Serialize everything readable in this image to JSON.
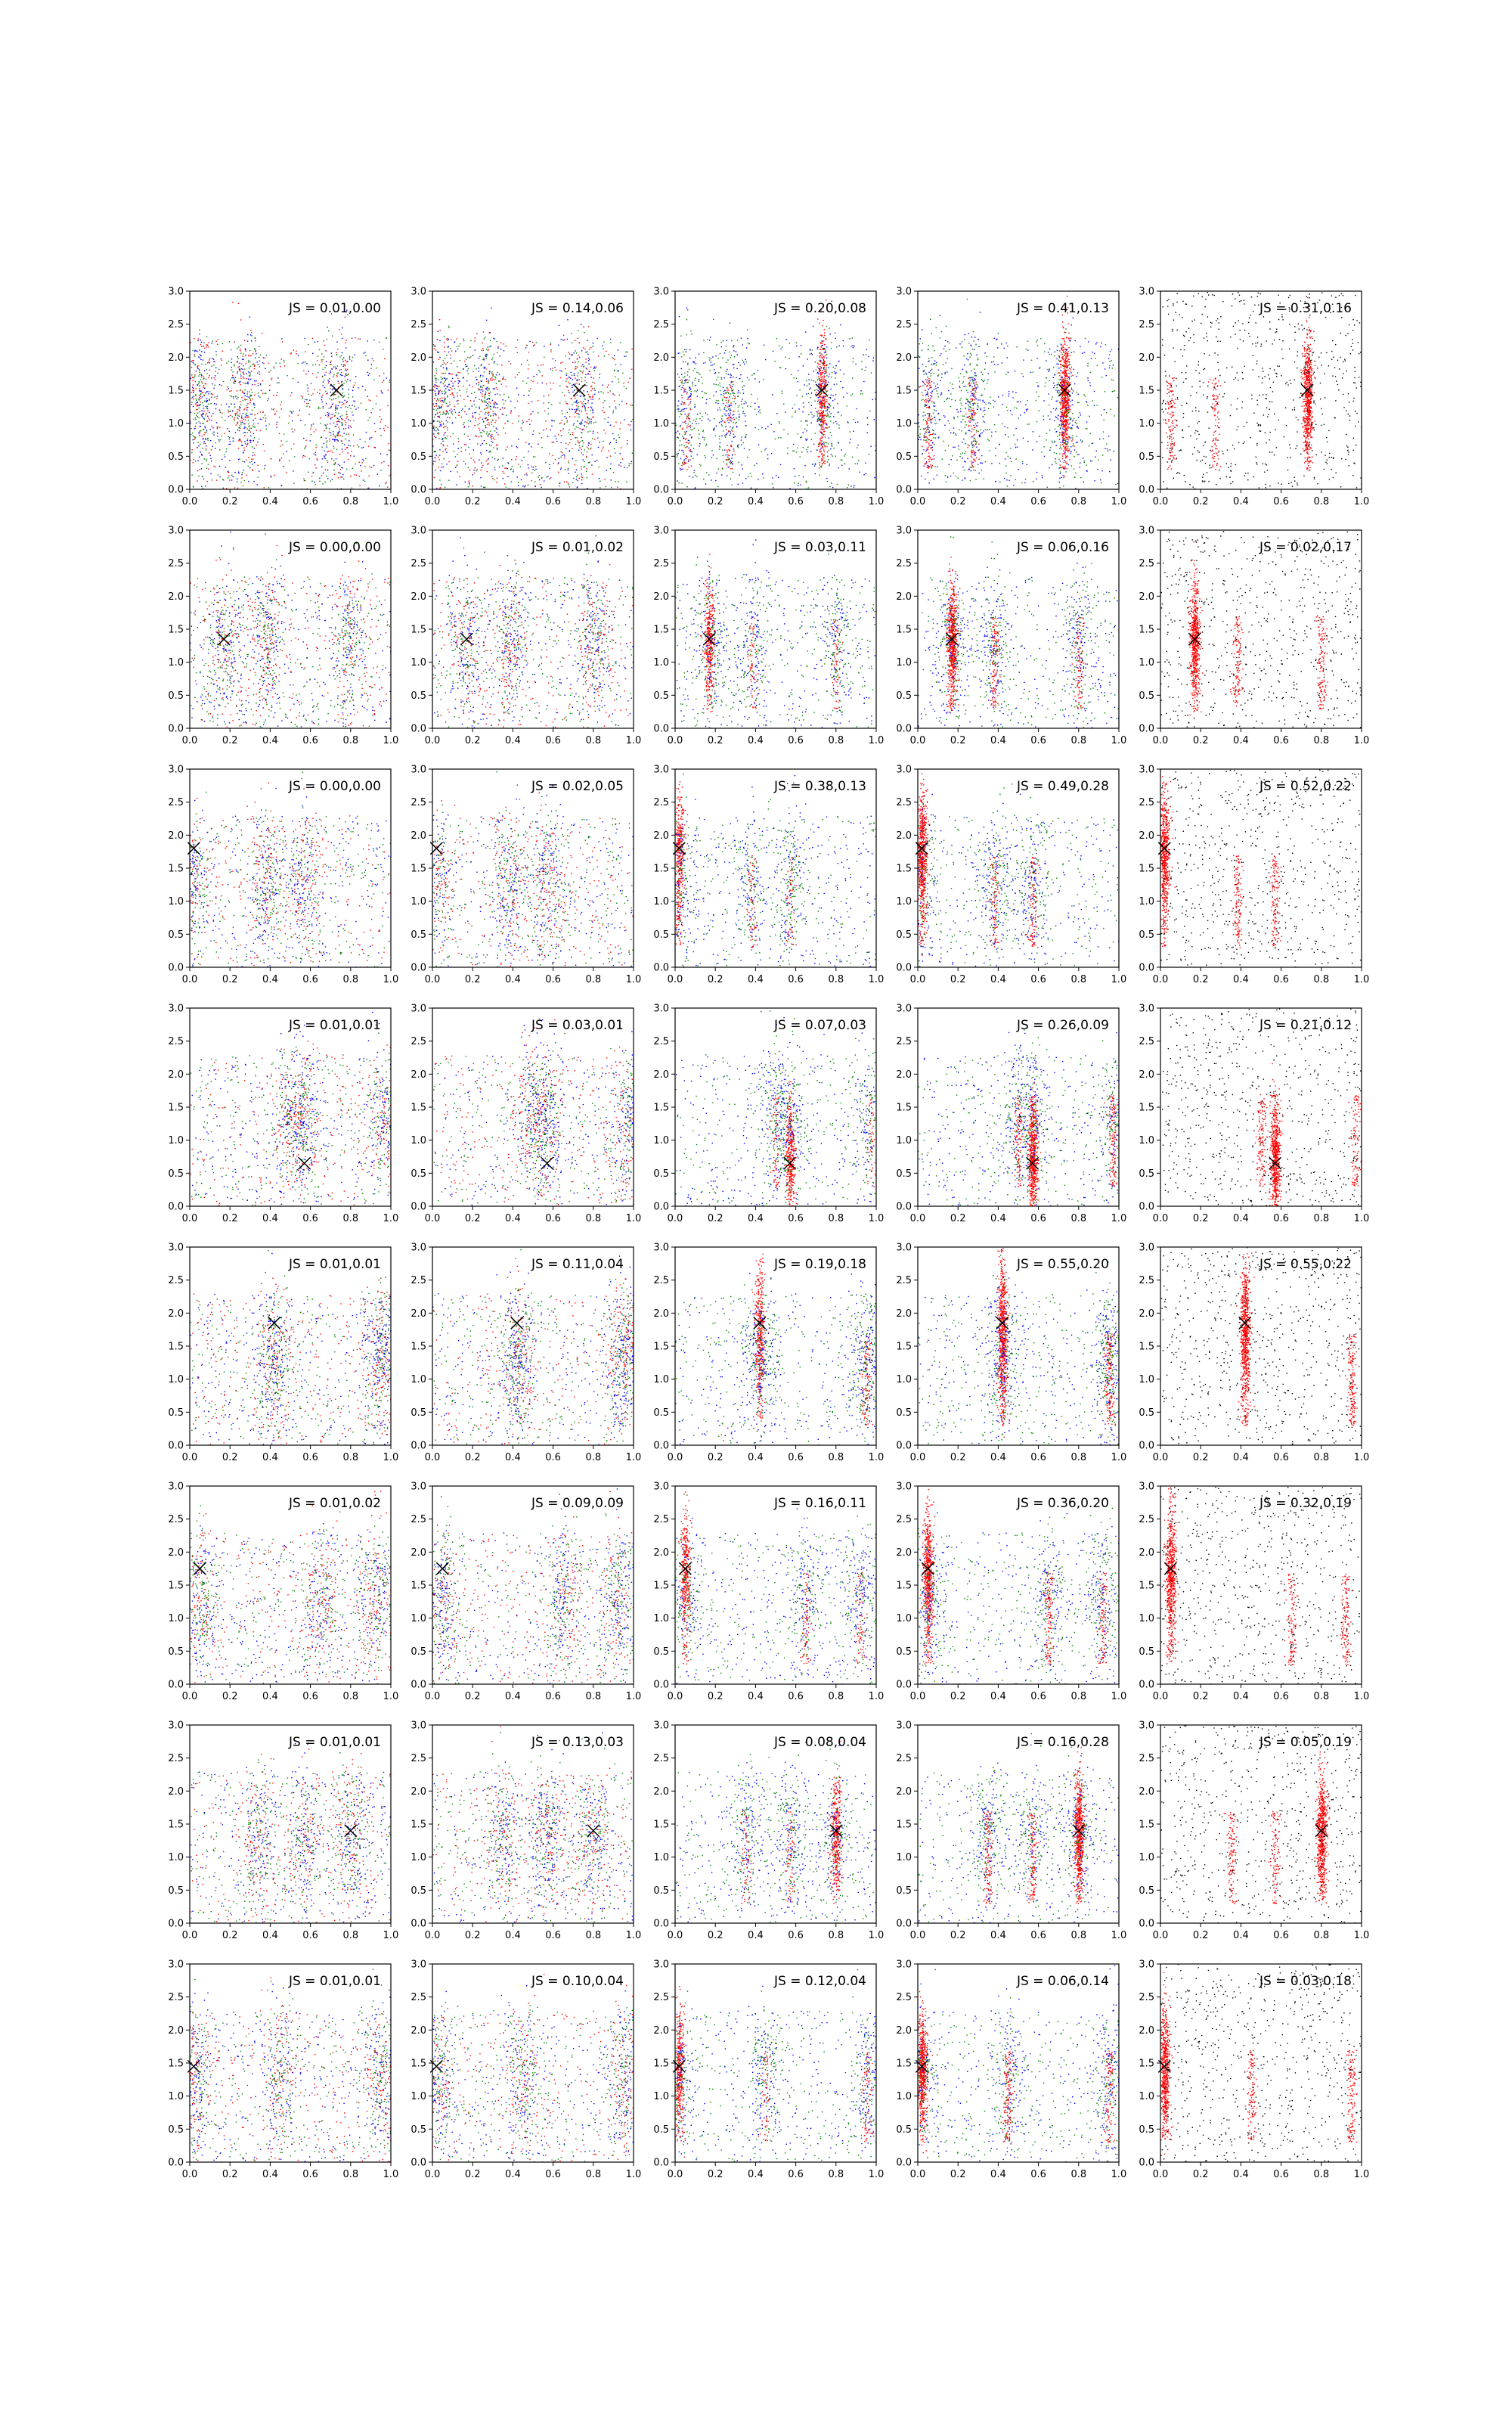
{
  "figure": {
    "rows": 8,
    "cols": 5
  },
  "colors": {
    "red": "#ff0000",
    "green": "#008000",
    "blue": "#0000ff",
    "black": "#000000",
    "marker": "#000000"
  },
  "chart_data": {
    "type": "scatter",
    "xlim": [
      0.0,
      1.0
    ],
    "ylim": [
      0.0,
      3.0
    ],
    "xticks": [
      "0.0",
      "0.2",
      "0.4",
      "0.6",
      "0.8",
      "1.0"
    ],
    "yticks": [
      "0.0",
      "0.5",
      "1.0",
      "1.5",
      "2.0",
      "2.5",
      "3.0"
    ],
    "grid": false,
    "marker_symbol": "x",
    "column_series": [
      [
        "red",
        "green",
        "blue"
      ],
      [
        "red",
        "green",
        "blue"
      ],
      [
        "red",
        "green",
        "blue"
      ],
      [
        "red",
        "green",
        "blue"
      ],
      [
        "red",
        "black"
      ]
    ],
    "rows": [
      {
        "marker": [
          0.73,
          1.5
        ],
        "peaks": [
          0.05,
          0.27,
          0.73
        ],
        "js": [
          "JS = 0.01,0.00",
          "JS = 0.14,0.06",
          "JS = 0.20,0.08",
          "JS = 0.41,0.13",
          "JS = 0.31,0.16"
        ]
      },
      {
        "marker": [
          0.17,
          1.35
        ],
        "peaks": [
          0.17,
          0.38,
          0.8
        ],
        "js": [
          "JS = 0.00,0.00",
          "JS = 0.01,0.02",
          "JS = 0.03,0.11",
          "JS = 0.06,0.16",
          "JS = 0.02,0.17"
        ]
      },
      {
        "marker": [
          0.02,
          1.8
        ],
        "peaks": [
          0.02,
          0.38,
          0.57
        ],
        "js": [
          "JS = 0.00,0.00",
          "JS = 0.02,0.05",
          "JS = 0.38,0.13",
          "JS = 0.49,0.28",
          "JS = 0.52,0.22"
        ]
      },
      {
        "marker": [
          0.57,
          0.65
        ],
        "peaks": [
          0.5,
          0.57,
          0.97
        ],
        "js": [
          "JS = 0.01,0.01",
          "JS = 0.03,0.01",
          "JS = 0.07,0.03",
          "JS = 0.26,0.09",
          "JS = 0.21,0.12"
        ]
      },
      {
        "marker": [
          0.42,
          1.85
        ],
        "peaks": [
          0.42,
          0.95
        ],
        "js": [
          "JS = 0.01,0.01",
          "JS = 0.11,0.04",
          "JS = 0.19,0.18",
          "JS = 0.55,0.20",
          "JS = 0.55,0.22"
        ]
      },
      {
        "marker": [
          0.05,
          1.75
        ],
        "peaks": [
          0.05,
          0.65,
          0.92
        ],
        "js": [
          "JS = 0.01,0.02",
          "JS = 0.09,0.09",
          "JS = 0.16,0.11",
          "JS = 0.36,0.20",
          "JS = 0.32,0.19"
        ]
      },
      {
        "marker": [
          0.8,
          1.4
        ],
        "peaks": [
          0.35,
          0.57,
          0.8
        ],
        "js": [
          "JS = 0.01,0.01",
          "JS = 0.13,0.03",
          "JS = 0.08,0.04",
          "JS = 0.16,0.28",
          "JS = 0.05,0.19"
        ]
      },
      {
        "marker": [
          0.02,
          1.45
        ],
        "peaks": [
          0.02,
          0.45,
          0.95
        ],
        "js": [
          "JS = 0.01,0.01",
          "JS = 0.10,0.04",
          "JS = 0.12,0.04",
          "JS = 0.06,0.14",
          "JS = 0.03,0.18"
        ]
      }
    ]
  }
}
